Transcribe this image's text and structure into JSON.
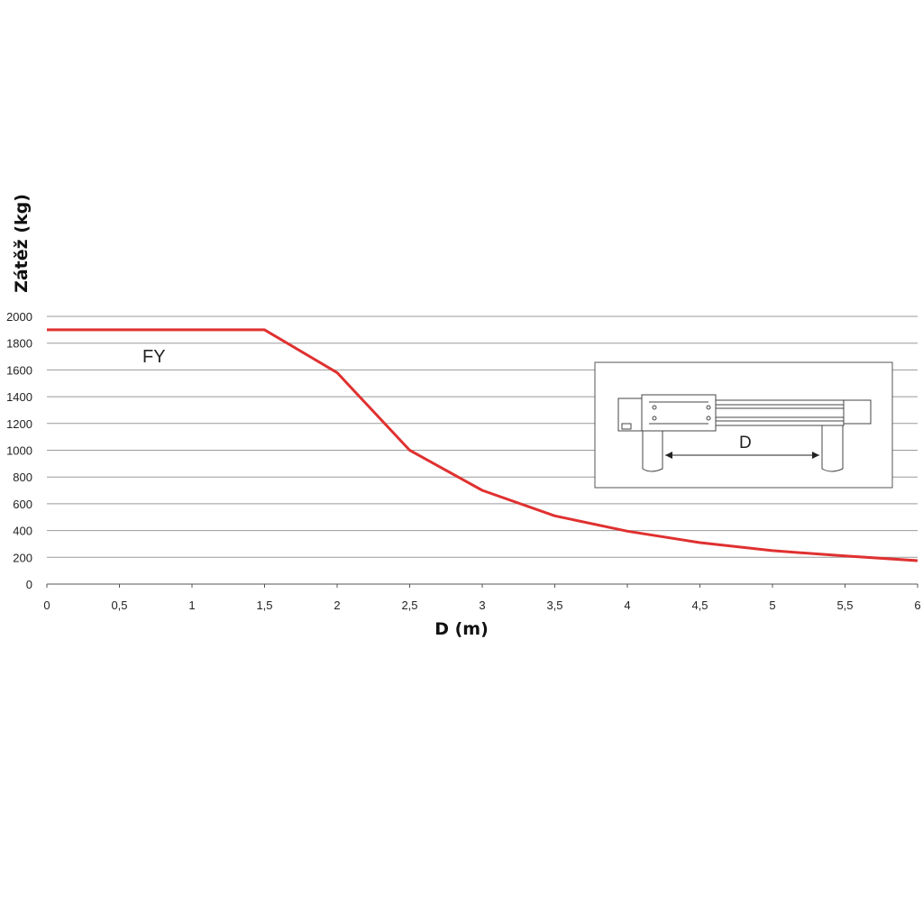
{
  "chart_data": {
    "type": "line",
    "title": "",
    "xlabel": "D (m)",
    "ylabel": "Zátěž (kg)",
    "xlim": [
      0,
      6
    ],
    "ylim": [
      0,
      2000
    ],
    "grid": "horizontal",
    "x_ticks": [
      "0",
      "0,5",
      "1",
      "1,5",
      "2",
      "2,5",
      "3",
      "3,5",
      "4",
      "4,5",
      "5",
      "5,5",
      "6"
    ],
    "y_ticks": [
      "0",
      "200",
      "400",
      "600",
      "800",
      "1000",
      "1200",
      "1400",
      "1600",
      "1800",
      "2000"
    ],
    "series": [
      {
        "name": "FY",
        "color": "#e03030",
        "x": [
          0,
          1.5,
          2,
          2.5,
          3,
          3.5,
          4,
          4.5,
          5,
          5.5,
          6
        ],
        "y": [
          1900,
          1900,
          1580,
          1000,
          700,
          510,
          395,
          310,
          250,
          210,
          175
        ]
      }
    ],
    "inset": {
      "description_label": "D",
      "position": "right"
    }
  }
}
